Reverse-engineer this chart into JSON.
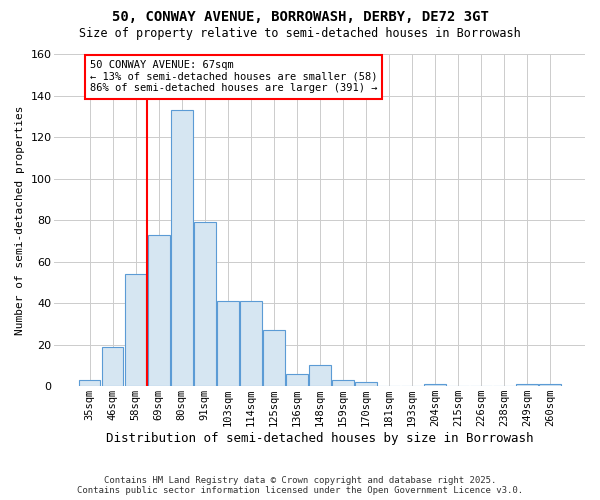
{
  "title": "50, CONWAY AVENUE, BORROWASH, DERBY, DE72 3GT",
  "subtitle": "Size of property relative to semi-detached houses in Borrowash",
  "xlabel": "Distribution of semi-detached houses by size in Borrowash",
  "ylabel": "Number of semi-detached properties",
  "categories": [
    "35sqm",
    "46sqm",
    "58sqm",
    "69sqm",
    "80sqm",
    "91sqm",
    "103sqm",
    "114sqm",
    "125sqm",
    "136sqm",
    "148sqm",
    "159sqm",
    "170sqm",
    "181sqm",
    "193sqm",
    "204sqm",
    "215sqm",
    "226sqm",
    "238sqm",
    "249sqm",
    "260sqm"
  ],
  "values": [
    3,
    19,
    54,
    73,
    133,
    79,
    41,
    41,
    27,
    6,
    10,
    3,
    2,
    0,
    0,
    1,
    0,
    0,
    0,
    1,
    1
  ],
  "bar_color": "#d6e6f2",
  "bar_edge_color": "#5b9bd5",
  "grid_color": "#cccccc",
  "annotation_text": "50 CONWAY AVENUE: 67sqm\n← 13% of semi-detached houses are smaller (58)\n86% of semi-detached houses are larger (391) →",
  "footer_line1": "Contains HM Land Registry data © Crown copyright and database right 2025.",
  "footer_line2": "Contains public sector information licensed under the Open Government Licence v3.0.",
  "ylim": [
    0,
    160
  ],
  "yticks": [
    0,
    20,
    40,
    60,
    80,
    100,
    120,
    140,
    160
  ],
  "background_color": "#ffffff",
  "plot_background": "#ffffff",
  "red_line_index": 3
}
